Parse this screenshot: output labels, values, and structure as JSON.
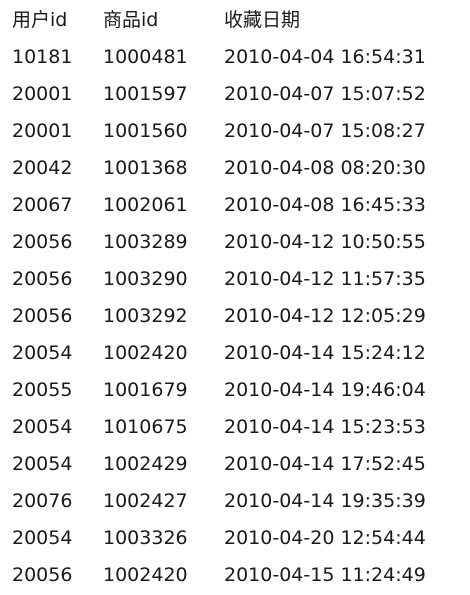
{
  "table": {
    "headers": [
      "用户id",
      "商品id",
      "收藏日期"
    ],
    "rows": [
      [
        "10181",
        "1000481",
        "2010-04-04 16:54:31"
      ],
      [
        "20001",
        "1001597",
        "2010-04-07 15:07:52"
      ],
      [
        "20001",
        "1001560",
        "2010-04-07 15:08:27"
      ],
      [
        "20042",
        "1001368",
        "2010-04-08 08:20:30"
      ],
      [
        "20067",
        "1002061",
        "2010-04-08 16:45:33"
      ],
      [
        "20056",
        "1003289",
        "2010-04-12 10:50:55"
      ],
      [
        "20056",
        "1003290",
        "2010-04-12 11:57:35"
      ],
      [
        "20056",
        "1003292",
        "2010-04-12 12:05:29"
      ],
      [
        "20054",
        "1002420",
        "2010-04-14 15:24:12"
      ],
      [
        "20055",
        "1001679",
        "2010-04-14 19:46:04"
      ],
      [
        "20054",
        "1010675",
        "2010-04-14 15:23:53"
      ],
      [
        "20054",
        "1002429",
        "2010-04-14 17:52:45"
      ],
      [
        "20076",
        "1002427",
        "2010-04-14 19:35:39"
      ],
      [
        "20054",
        "1003326",
        "2010-04-20 12:54:44"
      ],
      [
        "20056",
        "1002420",
        "2010-04-15 11:24:49"
      ]
    ]
  }
}
